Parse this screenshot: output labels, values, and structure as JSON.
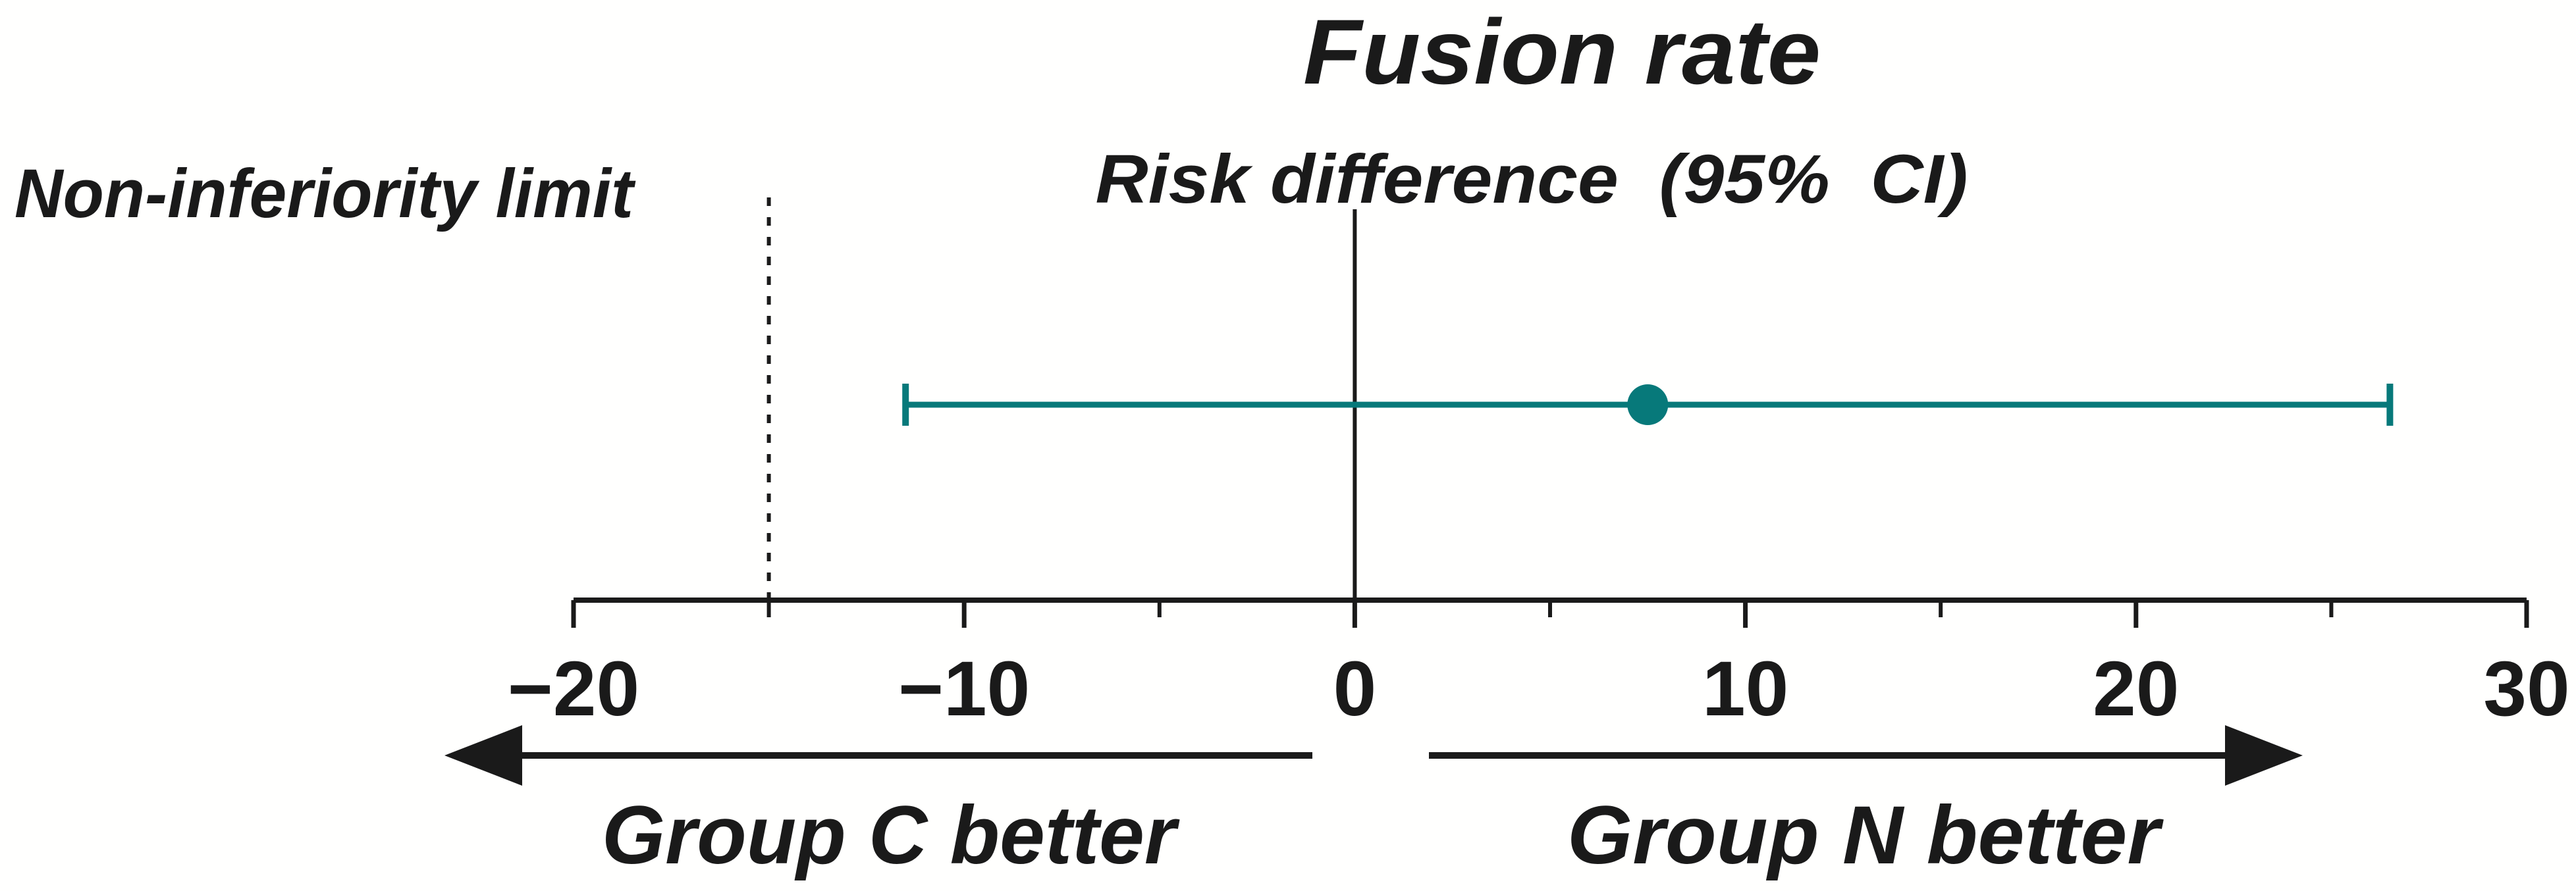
{
  "chart_data": {
    "type": "forest",
    "title": "Fusion rate",
    "subtitle": "Risk difference  (95%  CI)",
    "outcome": "Fusion rate",
    "xlim": [
      -20,
      30
    ],
    "major_ticks": [
      -20,
      -10,
      0,
      10,
      20,
      30
    ],
    "major_tick_labels": [
      "−20",
      "−10",
      "0",
      "10",
      "20",
      "30"
    ],
    "minor_ticks": [
      -15,
      -5,
      5,
      15,
      25
    ],
    "reference_line": 0,
    "non_inferiority_limit": -15,
    "estimate": {
      "label": "Risk difference",
      "ci_level": "95% CI",
      "point": 7.5,
      "ci_lower": -11.5,
      "ci_upper": 26.5
    },
    "annotations": {
      "non_inferiority": "Non-inferiority limit",
      "left_direction": "Group C better",
      "right_direction": "Group N better"
    },
    "grid": false,
    "legend": "none",
    "colors": {
      "estimate": "#07797a",
      "axis": "#1a1a1a",
      "background": "#ffffff"
    }
  }
}
